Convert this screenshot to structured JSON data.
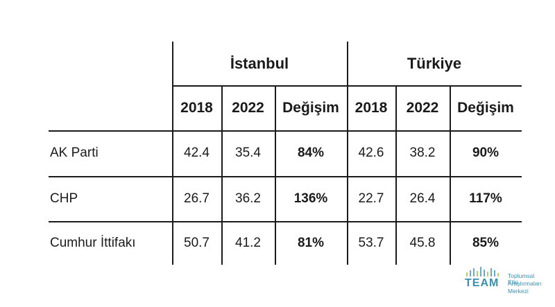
{
  "table": {
    "groups": [
      "İstanbul",
      "Türkiye"
    ],
    "subheaders": [
      "2018",
      "2022",
      "Değişim",
      "2018",
      "2022",
      "Değişim"
    ],
    "rows": [
      {
        "label": "AK Parti",
        "cells": [
          "42.4",
          "35.4",
          "84%",
          "42.6",
          "38.2",
          "90%"
        ]
      },
      {
        "label": "CHP",
        "cells": [
          "26.7",
          "36.2",
          "136%",
          "22.7",
          "26.4",
          "117%"
        ]
      },
      {
        "label": "Cumhur İttifakı",
        "cells": [
          "50.7",
          "41.2",
          "81%",
          "53.7",
          "45.8",
          "85%"
        ]
      }
    ]
  },
  "logo": {
    "wordmark": "TEAM",
    "subtitle_lines": [
      "Toplumsal Etki",
      "Araştırmaları",
      "Merkezi"
    ],
    "color": "#3a8fb0",
    "accent": "#8cc63f"
  }
}
